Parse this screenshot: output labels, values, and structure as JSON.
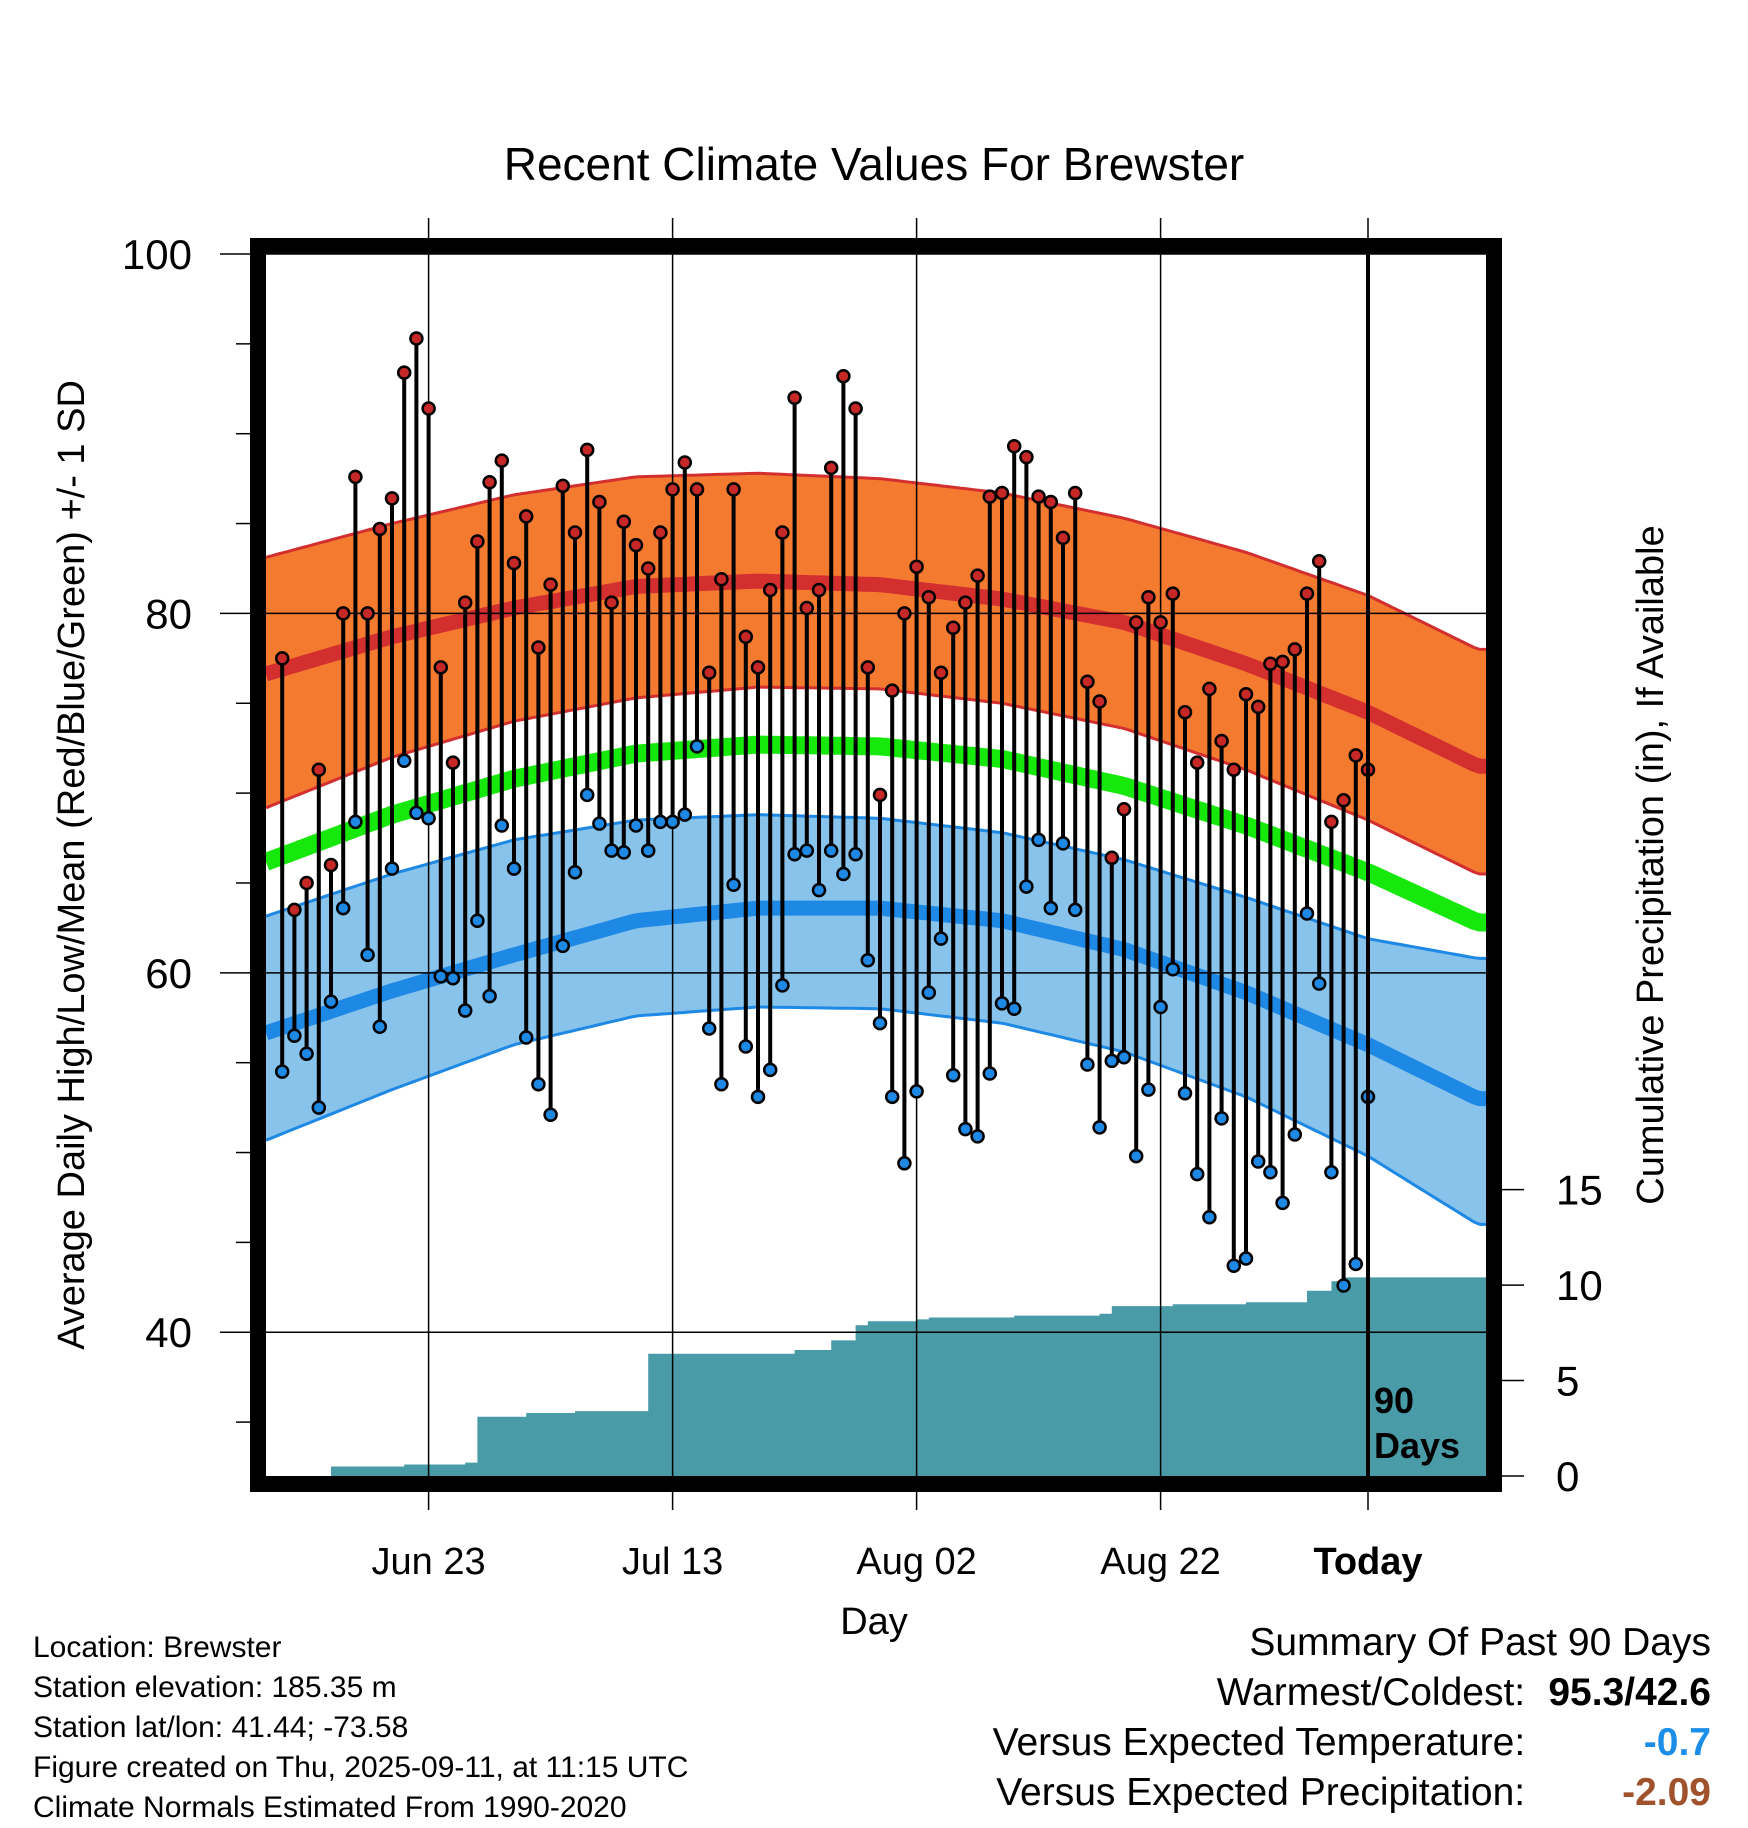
{
  "chart_data": {
    "type": "line",
    "title": "Recent Climate Values For Brewster",
    "xlabel": "Day",
    "ylabel": "Average Daily High/Low/Mean (Red/Blue/Green) +/- 1 SD",
    "y2label": "Cumulative Precipitation (in), If Available",
    "ylim": [
      32,
      100
    ],
    "y2lim": [
      0,
      64
    ],
    "yticks": [
      40,
      60,
      80,
      100
    ],
    "y2ticks": [
      0,
      5,
      10,
      15
    ],
    "xticks": [
      "Jun 23",
      "Jul 13",
      "Aug 02",
      "Aug 22",
      "Today"
    ],
    "today_marker": "90\nDays",
    "normals": {
      "days": [
        -91,
        -80,
        -70,
        -60,
        -50,
        -40,
        -30,
        -20,
        -10,
        0,
        9
      ],
      "high_mean": [
        76.5,
        78.7,
        80.3,
        81.5,
        81.8,
        81.6,
        80.8,
        79.5,
        77.2,
        74.5,
        71.5
      ],
      "high_plus_sd": [
        83,
        85,
        86.6,
        87.6,
        87.8,
        87.5,
        86.7,
        85.3,
        83.4,
        81,
        78
      ],
      "high_minus_sd": [
        69,
        72,
        74,
        75.3,
        75.9,
        75.8,
        75,
        73.6,
        71.3,
        68.5,
        65.5
      ],
      "mean": [
        66,
        68.8,
        70.8,
        72.2,
        72.7,
        72.6,
        71.9,
        70.4,
        68.2,
        65.6,
        62.8
      ],
      "low_mean": [
        56.5,
        59,
        61,
        62.9,
        63.6,
        63.6,
        62.9,
        61.3,
        58.9,
        56,
        53
      ],
      "low_plus_sd": [
        63,
        65.5,
        67.4,
        68.5,
        68.8,
        68.6,
        67.8,
        66.3,
        64.2,
        61.9,
        60.8
      ],
      "low_minus_sd": [
        50.5,
        53.5,
        56,
        57.6,
        58.1,
        58,
        57.2,
        55.6,
        53.1,
        49.8,
        46
      ]
    },
    "series": [
      {
        "name": "High",
        "color": "#c62828",
        "values": [
          77.5,
          63.5,
          65,
          71.3,
          66,
          80,
          87.6,
          80,
          84.7,
          86.4,
          93.4,
          95.3,
          91.4,
          77,
          71.7,
          80.6,
          84,
          87.3,
          88.5,
          82.8,
          85.4,
          78.1,
          81.6,
          87.1,
          84.5,
          89.1,
          86.2,
          80.6,
          85.1,
          83.8,
          82.5,
          84.5,
          86.9,
          88.4,
          86.9,
          76.7,
          81.9,
          86.9,
          78.7,
          77,
          81.3,
          84.5,
          92,
          80.3,
          81.3,
          88.1,
          93.2,
          91.4,
          77,
          69.9,
          75.7,
          80,
          82.6,
          80.9,
          76.7,
          79.2,
          80.6,
          82.1,
          86.5,
          86.7,
          89.3,
          88.7,
          86.5,
          86.2,
          84.2,
          86.7,
          76.2,
          75.1,
          66.4,
          69.1,
          79.5,
          80.9,
          79.5,
          81.1,
          74.5,
          71.7,
          75.8,
          72.9,
          71.3,
          75.5,
          74.8,
          77.2,
          77.3,
          78,
          81.1,
          82.9,
          68.4,
          69.6,
          72.1,
          71.3
        ]
      },
      {
        "name": "Low",
        "color": "#1e88e5",
        "values": [
          54.5,
          56.5,
          55.5,
          52.5,
          58.4,
          63.6,
          68.4,
          61,
          57,
          65.8,
          71.8,
          68.9,
          68.6,
          59.8,
          59.7,
          57.9,
          62.9,
          58.7,
          68.2,
          65.8,
          56.4,
          53.8,
          52.1,
          61.5,
          65.6,
          69.9,
          68.3,
          66.8,
          66.7,
          68.2,
          66.8,
          68.4,
          68.4,
          68.8,
          72.6,
          56.9,
          53.8,
          64.9,
          55.9,
          53.1,
          54.6,
          59.3,
          66.6,
          66.8,
          64.6,
          66.8,
          65.5,
          66.6,
          60.7,
          57.2,
          53.1,
          49.4,
          53.4,
          58.9,
          61.9,
          54.3,
          51.3,
          50.9,
          54.4,
          58.3,
          58,
          64.8,
          67.4,
          63.6,
          67.2,
          63.5,
          54.9,
          51.4,
          55.1,
          55.3,
          49.8,
          53.5,
          58.1,
          60.2,
          53.3,
          48.8,
          46.4,
          51.9,
          43.7,
          44.1,
          49.5,
          48.9,
          47.2,
          51,
          63.3,
          59.4,
          48.9,
          42.6,
          43.8,
          53.1
        ]
      }
    ],
    "precip": {
      "days": [
        -90,
        -87,
        -85,
        -84,
        -80,
        -79,
        -75,
        -74,
        -73,
        -69,
        -68,
        -66,
        -65,
        -61,
        -59,
        -57,
        -56,
        -55,
        -52,
        -51,
        -49,
        -48,
        -47,
        -45,
        -44,
        -42,
        -41,
        -37,
        -36,
        -33,
        -32,
        -29,
        -22,
        -21,
        -16,
        -15,
        -13,
        -11,
        -10,
        -6,
        -5,
        -3,
        -2,
        0,
        9
      ],
      "values": [
        0,
        0,
        0.5,
        0.5,
        0.5,
        0.6,
        0.6,
        0.7,
        3.1,
        3.3,
        3.3,
        3.3,
        3.4,
        3.4,
        6.4,
        6.4,
        6.4,
        6.4,
        6.4,
        6.4,
        6.4,
        6.4,
        6.6,
        6.6,
        7.1,
        7.9,
        8.1,
        8.2,
        8.3,
        8.3,
        8.3,
        8.4,
        8.5,
        8.9,
        9.0,
        9.0,
        9.0,
        9.0,
        9.1,
        9.1,
        9.7,
        10.2,
        10.4,
        10.4,
        10.4
      ]
    }
  },
  "info": {
    "location": "Location: Brewster",
    "elevation": "Station elevation: 185.35 m",
    "latlon": "Station lat/lon: 41.44; -73.58",
    "created": "Figure created on Thu, 2025-09-11, at 11:15 UTC",
    "normals_period": "Climate Normals Estimated From 1990-2020"
  },
  "summary": {
    "heading": "Summary Of Past 90 Days",
    "warmest_coldest_label": "Warmest/Coldest:",
    "warmest_coldest_value": "95.3/42.6",
    "temp_label": "Versus Expected Temperature:",
    "temp_value": "-0.7",
    "precip_label": "Versus Expected Precipitation:",
    "precip_value": "-2.09"
  }
}
